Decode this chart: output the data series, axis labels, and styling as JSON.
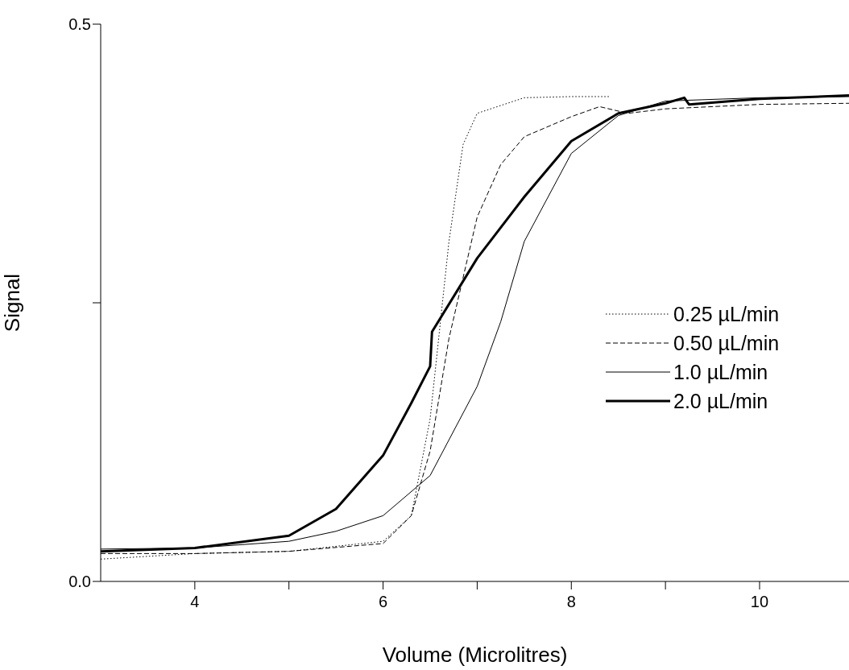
{
  "chart_data": {
    "type": "line",
    "xlabel": "Volume (Microlitres)",
    "ylabel": "Signal",
    "xlim": [
      3,
      10.95
    ],
    "ylim": [
      0,
      0.5
    ],
    "xticks": [
      4,
      {
        "value": 5,
        "label": null
      },
      6,
      {
        "value": 7,
        "label": null
      },
      8,
      {
        "value": 9,
        "label": null
      },
      10
    ],
    "yticks": [
      {
        "value": 0,
        "label": "0.0"
      },
      {
        "value": 0.25,
        "label": null
      },
      {
        "value": 0.5,
        "label": "0.5"
      }
    ],
    "legend": "right",
    "marker": "none",
    "series": [
      {
        "name": "0.25 µL/min",
        "color": "#000000",
        "line_style": "dotted",
        "x": [
          3,
          4,
          5,
          6,
          6.3,
          6.5,
          6.7,
          6.85,
          7,
          7.5,
          8,
          8.4
        ],
        "values": [
          0.02,
          0.025,
          0.027,
          0.036,
          0.059,
          0.146,
          0.305,
          0.392,
          0.42,
          0.434,
          0.435,
          0.435
        ]
      },
      {
        "name": "0.50 µL/min",
        "color": "#000000",
        "line_style": "dashed",
        "x": [
          3,
          4,
          5,
          6,
          6.3,
          6.5,
          6.7,
          7,
          7.25,
          7.5,
          8,
          8.3,
          8.6,
          9,
          10,
          10.95
        ],
        "values": [
          0.025,
          0.025,
          0.027,
          0.034,
          0.059,
          0.117,
          0.218,
          0.327,
          0.374,
          0.399,
          0.417,
          0.426,
          0.42,
          0.424,
          0.428,
          0.429
        ]
      },
      {
        "name": "1.0 µL/min",
        "color": "#000000",
        "line_style": "solid",
        "x": [
          3,
          4,
          5,
          5.5,
          6,
          6.5,
          7,
          7.25,
          7.5,
          8,
          8.5,
          9,
          10,
          10.95
        ],
        "values": [
          0.029,
          0.03,
          0.036,
          0.045,
          0.059,
          0.095,
          0.175,
          0.233,
          0.305,
          0.384,
          0.418,
          0.431,
          0.434,
          0.435
        ]
      },
      {
        "name": "2.0 µL/min",
        "color": "#000000",
        "line_style": "solid",
        "x": [
          3,
          4,
          5,
          5.5,
          6,
          6.3,
          6.5,
          6.52,
          7,
          7.5,
          8,
          8.5,
          9,
          9.2,
          9.25,
          10,
          10.95
        ],
        "values": [
          0.027,
          0.03,
          0.041,
          0.065,
          0.113,
          0.16,
          0.193,
          0.224,
          0.29,
          0.345,
          0.395,
          0.42,
          0.429,
          0.434,
          0.428,
          0.433,
          0.436
        ]
      }
    ]
  }
}
